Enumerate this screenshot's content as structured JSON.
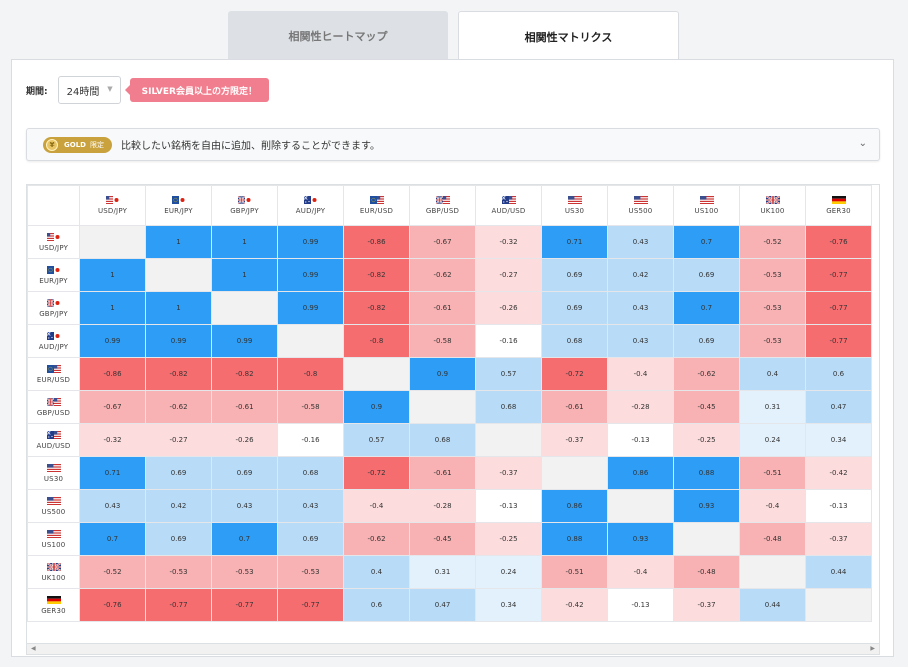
{
  "tabs": [
    {
      "label": "相関性ヒートマップ",
      "active": false
    },
    {
      "label": "相関性マトリクス",
      "active": true
    }
  ],
  "controls": {
    "period_label": "期間:",
    "period_value": "24時間",
    "silver_notice": "SILVER会員以上の方限定！"
  },
  "gold": {
    "badge": "GOLD",
    "badge_sub": "限定",
    "text": "比較したい銘柄を自由に追加、削除することができます。"
  },
  "colors": {
    "pos_strong": "#2e9df5",
    "pos_mid": "#b8dbf7",
    "pos_weak": "#e3f1fc",
    "neg_strong": "#f66d70",
    "neg_mid": "#f9b2b3",
    "neg_weak": "#fcdcdc",
    "neutral": "#ffffff",
    "diag": "#f2f2f2"
  },
  "matrix": {
    "labels": [
      "USD/JPY",
      "EUR/JPY",
      "GBP/JPY",
      "AUD/JPY",
      "EUR/USD",
      "GBP/USD",
      "AUD/USD",
      "US30",
      "US500",
      "US100",
      "UK100",
      "GER30"
    ],
    "flags": [
      "us-jp",
      "eu-jp",
      "gb-jp",
      "au-jp",
      "eu-us",
      "gb-us",
      "au-us",
      "us",
      "us",
      "us",
      "gb",
      "de"
    ],
    "values": [
      [
        null,
        "1",
        "1",
        "0.99",
        "-0.86",
        "-0.67",
        "-0.32",
        "0.71",
        "0.43",
        "0.7",
        "-0.52",
        "-0.76"
      ],
      [
        "1",
        null,
        "1",
        "0.99",
        "-0.82",
        "-0.62",
        "-0.27",
        "0.69",
        "0.42",
        "0.69",
        "-0.53",
        "-0.77"
      ],
      [
        "1",
        "1",
        null,
        "0.99",
        "-0.82",
        "-0.61",
        "-0.26",
        "0.69",
        "0.43",
        "0.7",
        "-0.53",
        "-0.77"
      ],
      [
        "0.99",
        "0.99",
        "0.99",
        null,
        "-0.8",
        "-0.58",
        "-0.16",
        "0.68",
        "0.43",
        "0.69",
        "-0.53",
        "-0.77"
      ],
      [
        "-0.86",
        "-0.82",
        "-0.82",
        "-0.8",
        null,
        "0.9",
        "0.57",
        "-0.72",
        "-0.4",
        "-0.62",
        "0.4",
        "0.6"
      ],
      [
        "-0.67",
        "-0.62",
        "-0.61",
        "-0.58",
        "0.9",
        null,
        "0.68",
        "-0.61",
        "-0.28",
        "-0.45",
        "0.31",
        "0.47"
      ],
      [
        "-0.32",
        "-0.27",
        "-0.26",
        "-0.16",
        "0.57",
        "0.68",
        null,
        "-0.37",
        "-0.13",
        "-0.25",
        "0.24",
        "0.34"
      ],
      [
        "0.71",
        "0.69",
        "0.69",
        "0.68",
        "-0.72",
        "-0.61",
        "-0.37",
        null,
        "0.86",
        "0.88",
        "-0.51",
        "-0.42"
      ],
      [
        "0.43",
        "0.42",
        "0.43",
        "0.43",
        "-0.4",
        "-0.28",
        "-0.13",
        "0.86",
        null,
        "0.93",
        "-0.4",
        "-0.13"
      ],
      [
        "0.7",
        "0.69",
        "0.7",
        "0.69",
        "-0.62",
        "-0.45",
        "-0.25",
        "0.88",
        "0.93",
        null,
        "-0.48",
        "-0.37"
      ],
      [
        "-0.52",
        "-0.53",
        "-0.53",
        "-0.53",
        "0.4",
        "0.31",
        "0.24",
        "-0.51",
        "-0.4",
        "-0.48",
        null,
        "0.44"
      ],
      [
        "-0.76",
        "-0.77",
        "-0.77",
        "-0.77",
        "0.6",
        "0.47",
        "0.34",
        "-0.42",
        "-0.13",
        "-0.37",
        "0.44",
        null
      ]
    ]
  }
}
